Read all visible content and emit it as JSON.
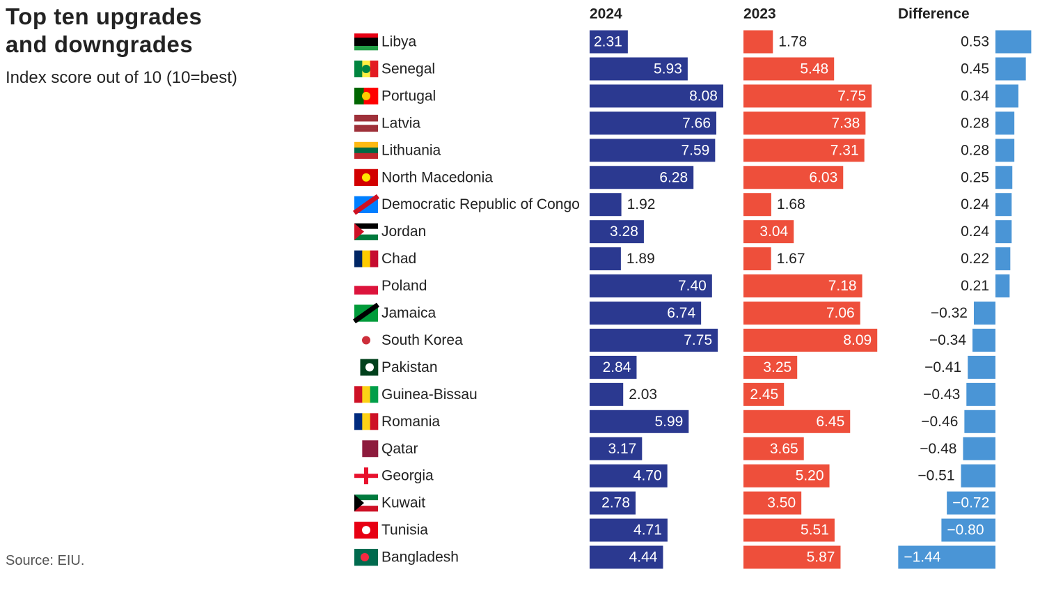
{
  "chart_data": {
    "type": "bar",
    "title": "Top ten upgrades and downgrades",
    "subtitle": "Index score out of 10 (10=best)",
    "source": "Source: EIU.",
    "categories": [
      "Libya",
      "Senegal",
      "Portugal",
      "Latvia",
      "Lithuania",
      "North Macedonia",
      "Democratic Republic of Congo",
      "Jordan",
      "Chad",
      "Poland",
      "Jamaica",
      "South Korea",
      "Pakistan",
      "Guinea-Bissau",
      "Romania",
      "Qatar",
      "Georgia",
      "Kuwait",
      "Tunisia",
      "Bangladesh"
    ],
    "series": [
      {
        "name": "2024",
        "color": "#2b3990",
        "values": [
          2.31,
          5.93,
          8.08,
          7.66,
          7.59,
          6.28,
          1.92,
          3.28,
          1.89,
          7.4,
          6.74,
          7.75,
          2.84,
          2.03,
          5.99,
          3.17,
          4.7,
          2.78,
          4.71,
          4.44
        ],
        "value_labels": [
          "2.31",
          "5.93",
          "8.08",
          "7.66",
          "7.59",
          "6.28",
          "1.92",
          "3.28",
          "1.89",
          "7.40",
          "6.74",
          "7.75",
          "2.84",
          "2.03",
          "5.99",
          "3.17",
          "4.70",
          "2.78",
          "4.71",
          "4.44"
        ]
      },
      {
        "name": "2023",
        "color": "#ee4f3b",
        "values": [
          1.78,
          5.48,
          7.75,
          7.38,
          7.31,
          6.03,
          1.68,
          3.04,
          1.67,
          7.18,
          7.06,
          8.09,
          3.25,
          2.45,
          6.45,
          3.65,
          5.2,
          3.5,
          5.51,
          5.87
        ],
        "value_labels": [
          "1.78",
          "5.48",
          "7.75",
          "7.38",
          "7.31",
          "6.03",
          "1.68",
          "3.04",
          "1.67",
          "7.18",
          "7.06",
          "8.09",
          "3.25",
          "2.45",
          "6.45",
          "3.65",
          "5.20",
          "3.50",
          "5.51",
          "5.87"
        ]
      },
      {
        "name": "Difference",
        "color": "#4a95d6",
        "values": [
          0.53,
          0.45,
          0.34,
          0.28,
          0.28,
          0.25,
          0.24,
          0.24,
          0.22,
          0.21,
          -0.32,
          -0.34,
          -0.41,
          -0.43,
          -0.46,
          -0.48,
          -0.51,
          -0.72,
          -0.8,
          -1.44
        ],
        "value_labels": [
          "0.53",
          "0.45",
          "0.34",
          "0.28",
          "0.28",
          "0.25",
          "0.24",
          "0.24",
          "0.22",
          "0.21",
          "−0.32",
          "−0.34",
          "−0.41",
          "−0.43",
          "−0.46",
          "−0.48",
          "−0.51",
          "−0.72",
          "−0.80",
          "−1.44"
        ]
      }
    ]
  }
}
